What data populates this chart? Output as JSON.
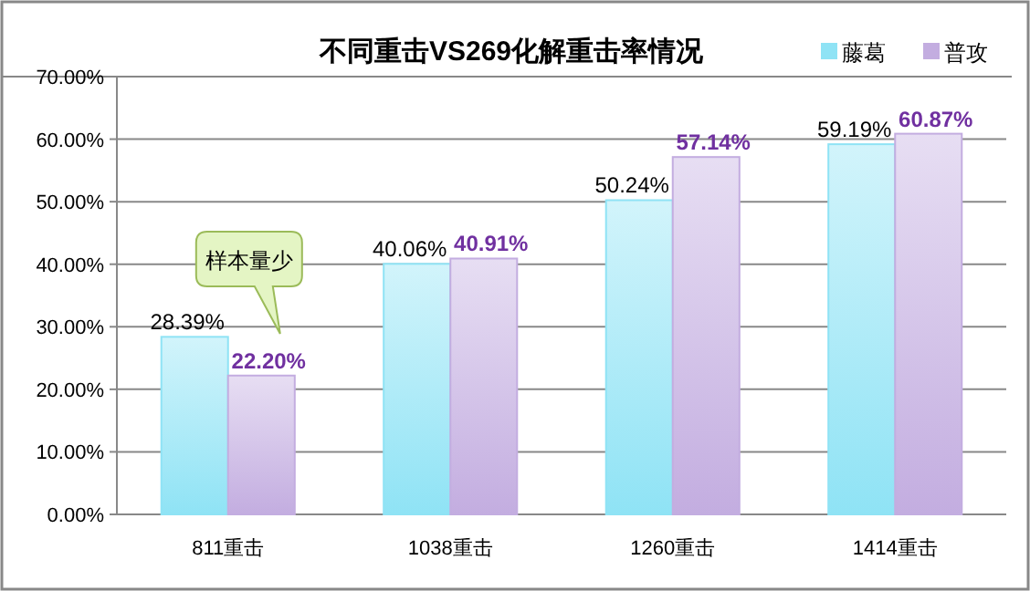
{
  "chart_data": {
    "type": "bar",
    "title": "不同重击VS269化解重击率情况",
    "categories": [
      "811重击",
      "1038重击",
      "1260重击",
      "1414重击"
    ],
    "series": [
      {
        "name": "藤葛",
        "color": "#8fe3f5",
        "values": [
          28.39,
          40.06,
          50.24,
          59.19
        ],
        "value_labels": [
          "28.39%",
          "40.06%",
          "50.24%",
          "59.19%"
        ]
      },
      {
        "name": "普攻",
        "color": "#c3ade0",
        "values": [
          22.2,
          40.91,
          57.14,
          60.87
        ],
        "value_labels": [
          "22.20%",
          "40.91%",
          "57.14%",
          "60.87%"
        ]
      }
    ],
    "ylim": [
      0,
      70
    ],
    "yticks": [
      {
        "value": 0,
        "label": "0.00%"
      },
      {
        "value": 10,
        "label": "10.00%"
      },
      {
        "value": 20,
        "label": "20.00%"
      },
      {
        "value": 30,
        "label": "30.00%"
      },
      {
        "value": 40,
        "label": "40.00%"
      },
      {
        "value": 50,
        "label": "50.00%"
      },
      {
        "value": 60,
        "label": "60.00%"
      },
      {
        "value": 70,
        "label": "70.00%"
      }
    ],
    "grid": "y",
    "legend": "top right",
    "annotations": [
      "样本量少"
    ]
  }
}
